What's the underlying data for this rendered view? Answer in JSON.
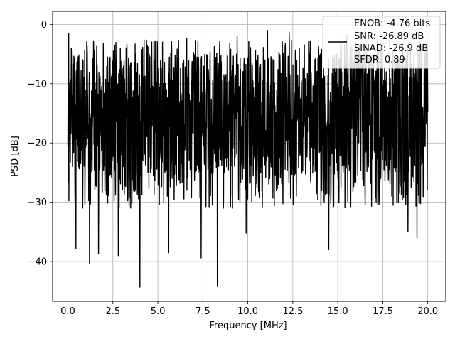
{
  "chart_data": {
    "type": "line",
    "title": "",
    "xlabel": "Frequency [MHz]",
    "ylabel": "PSD [dB]",
    "xlim": [
      -0.85,
      21.0
    ],
    "ylim": [
      -46.7,
      2.2
    ],
    "xticks": [
      0.0,
      2.5,
      5.0,
      7.5,
      10.0,
      12.5,
      15.0,
      17.5,
      20.0
    ],
    "xtick_labels": [
      "0.0",
      "2.5",
      "5.0",
      "7.5",
      "10.0",
      "12.5",
      "15.0",
      "17.5",
      "20.0"
    ],
    "yticks": [
      0,
      -10,
      -20,
      -30,
      -40
    ],
    "ytick_labels": [
      "0",
      "−10",
      "−20",
      "−30",
      "−40"
    ],
    "grid": true,
    "legend_position": "upper-right",
    "legend_lines": [
      "ENOB: -4.76 bits",
      "SNR: -26.89 dB",
      "SINAD: -26.9 dB",
      "SFDR: 0.89"
    ],
    "line_color": "#000000",
    "series": [
      {
        "name": "ENOB: -4.76 bits\nSNR: -26.89 dB\nSINAD: -26.9 dB\nSFDR: 0.89",
        "description": "noise-like PSD, fluctuating mostly between about -5 and -25 dB with deep dips",
        "band_top": -5,
        "band_bottom": -25,
        "peaks": [
          {
            "x": 0.05,
            "y": -1.5
          },
          {
            "x": 11.1,
            "y": -1.0
          },
          {
            "x": 12.3,
            "y": -1.3
          },
          {
            "x": 6.6,
            "y": -2.3
          },
          {
            "x": 15.5,
            "y": -1.8
          },
          {
            "x": 9.4,
            "y": -2.0
          }
        ],
        "dips": [
          {
            "x": 4.0,
            "y": -44.3
          },
          {
            "x": 8.3,
            "y": -44.2
          },
          {
            "x": 1.2,
            "y": -40.3
          },
          {
            "x": 1.7,
            "y": -38.7
          },
          {
            "x": 5.6,
            "y": -38.5
          },
          {
            "x": 7.4,
            "y": -39.4
          },
          {
            "x": 2.8,
            "y": -39.0
          },
          {
            "x": 0.45,
            "y": -37.8
          },
          {
            "x": 19.4,
            "y": -36.0
          },
          {
            "x": 18.9,
            "y": -35.0
          },
          {
            "x": 14.5,
            "y": -38.0
          },
          {
            "x": 9.9,
            "y": -35.2
          }
        ]
      }
    ]
  }
}
